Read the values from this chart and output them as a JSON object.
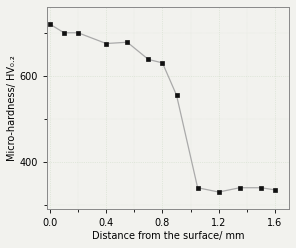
{
  "x": [
    0.0,
    0.1,
    0.2,
    0.4,
    0.55,
    0.7,
    0.8,
    0.9,
    1.05,
    1.2,
    1.35,
    1.5,
    1.6
  ],
  "y": [
    720,
    700,
    700,
    675,
    678,
    638,
    630,
    555,
    340,
    330,
    340,
    340,
    335
  ],
  "xlabel": "Distance from the surface/ mm",
  "ylabel": "Micro-hardness/ HV₀.₂",
  "xlim": [
    -0.02,
    1.7
  ],
  "ylim": [
    290,
    760
  ],
  "yticks": [
    400,
    600
  ],
  "xticks": [
    0.0,
    0.4,
    0.8,
    1.2,
    1.6
  ],
  "line_color": "#aaaaaa",
  "marker_color": "#111111",
  "bg_color": "#f2f2ee",
  "grid_dot_color_pink": "#e8c8e8",
  "grid_dot_color_green": "#c0dcc0",
  "figsize": [
    2.96,
    2.48
  ],
  "dpi": 100
}
